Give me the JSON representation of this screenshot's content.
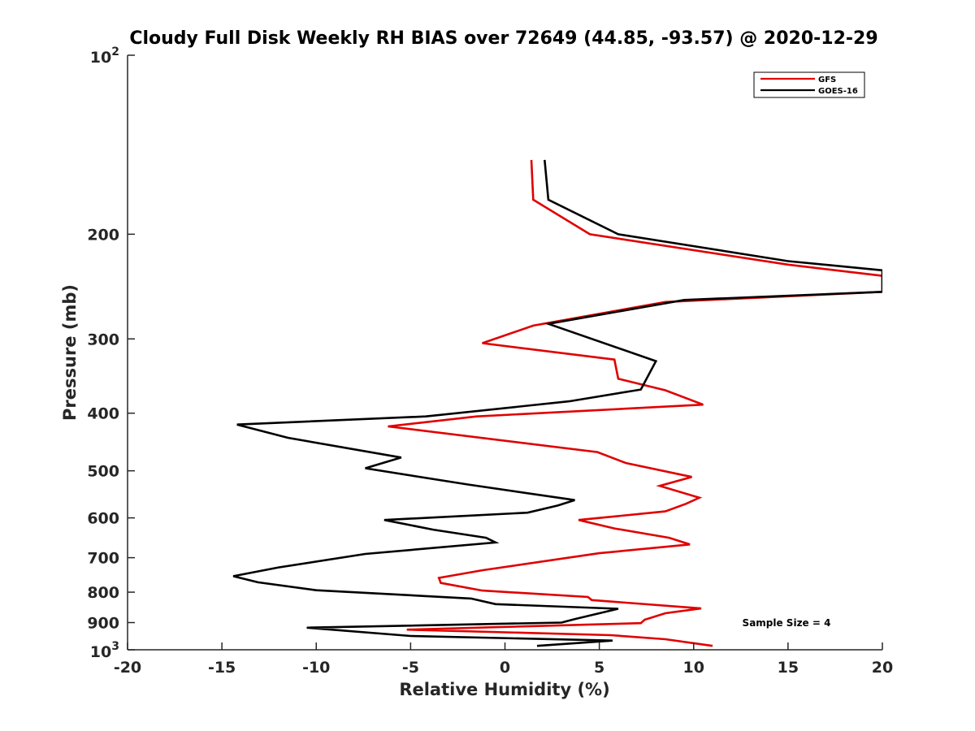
{
  "chart_data": {
    "type": "line",
    "title": "Cloudy Full Disk Weekly RH BIAS over 72649 (44.85, -93.57) @ 2020-12-29",
    "xlabel": "Relative Humidity (%)",
    "ylabel": "Pressure (mb)",
    "xlim": [
      -20,
      20
    ],
    "ylim": [
      1000,
      100
    ],
    "yscale": "log",
    "grid": false,
    "legend": "top-right",
    "x_ticks": [
      -20,
      -15,
      -10,
      -5,
      0,
      5,
      10,
      15,
      20
    ],
    "x_tick_labels": [
      "-20",
      "-15",
      "-10",
      "-5",
      "0",
      "5",
      "10",
      "15",
      "20"
    ],
    "y_ticks": [
      {
        "value": 100,
        "base": "10",
        "exp": "2"
      },
      {
        "value": 200,
        "label": "200"
      },
      {
        "value": 300,
        "label": "300"
      },
      {
        "value": 400,
        "label": "400"
      },
      {
        "value": 500,
        "label": "500"
      },
      {
        "value": 600,
        "label": "600"
      },
      {
        "value": 700,
        "label": "700"
      },
      {
        "value": 800,
        "label": "800"
      },
      {
        "value": 900,
        "label": "900"
      },
      {
        "value": 1000,
        "base": "10",
        "exp": "3"
      }
    ],
    "annotation": "Sample Size = 4",
    "series": [
      {
        "name": "GFS",
        "color": "#e00000",
        "points": [
          [
            1.4,
            150
          ],
          [
            1.5,
            175
          ],
          [
            4.5,
            200
          ],
          [
            15,
            225
          ],
          [
            20,
            235
          ],
          [
            20,
            250
          ],
          [
            8.5,
            260
          ],
          [
            1.5,
            285
          ],
          [
            -1.2,
            305
          ],
          [
            5.8,
            325
          ],
          [
            6.0,
            350
          ],
          [
            8.5,
            366
          ],
          [
            10.5,
            387
          ],
          [
            -1.5,
            405
          ],
          [
            -6.2,
            421
          ],
          [
            4.9,
            465
          ],
          [
            6.4,
            485
          ],
          [
            9.9,
            512
          ],
          [
            8.2,
            530
          ],
          [
            10.3,
            555
          ],
          [
            9.6,
            568
          ],
          [
            8.5,
            585
          ],
          [
            3.9,
            605
          ],
          [
            5.8,
            625
          ],
          [
            8.7,
            648
          ],
          [
            9.8,
            665
          ],
          [
            5.0,
            688
          ],
          [
            -1.2,
            735
          ],
          [
            -3.5,
            757
          ],
          [
            -3.4,
            772
          ],
          [
            -1.2,
            795
          ],
          [
            4.4,
            815
          ],
          [
            4.6,
            825
          ],
          [
            10.4,
            852
          ],
          [
            8.5,
            868
          ],
          [
            7.4,
            890
          ],
          [
            7.2,
            902
          ],
          [
            -5.2,
            925
          ],
          [
            5.6,
            945
          ],
          [
            8.5,
            960
          ],
          [
            11.0,
            985
          ]
        ]
      },
      {
        "name": "GOES-16",
        "color": "#000000",
        "points": [
          [
            2.1,
            150
          ],
          [
            2.3,
            175
          ],
          [
            6.0,
            200
          ],
          [
            15,
            222
          ],
          [
            20,
            230
          ],
          [
            20,
            250
          ],
          [
            9.5,
            258
          ],
          [
            2.3,
            283
          ],
          [
            8.0,
            327
          ],
          [
            7.2,
            365
          ],
          [
            3.4,
            382
          ],
          [
            -4.2,
            405
          ],
          [
            -14.2,
            418
          ],
          [
            -11.5,
            440
          ],
          [
            -5.5,
            475
          ],
          [
            -7.4,
            495
          ],
          [
            -2.0,
            527
          ],
          [
            3.7,
            560
          ],
          [
            2.8,
            572
          ],
          [
            1.2,
            588
          ],
          [
            -6.4,
            605
          ],
          [
            -3.8,
            628
          ],
          [
            -1.0,
            648
          ],
          [
            -0.5,
            660
          ],
          [
            -7.4,
            690
          ],
          [
            -12.0,
            727
          ],
          [
            -14.4,
            752
          ],
          [
            -13.1,
            770
          ],
          [
            -10.0,
            794
          ],
          [
            -1.8,
            820
          ],
          [
            -0.5,
            838
          ],
          [
            6.0,
            853
          ],
          [
            3.7,
            888
          ],
          [
            3.0,
            900
          ],
          [
            -10.5,
            918
          ],
          [
            -5.0,
            948
          ],
          [
            5.7,
            965
          ],
          [
            1.7,
            985
          ]
        ]
      }
    ]
  }
}
